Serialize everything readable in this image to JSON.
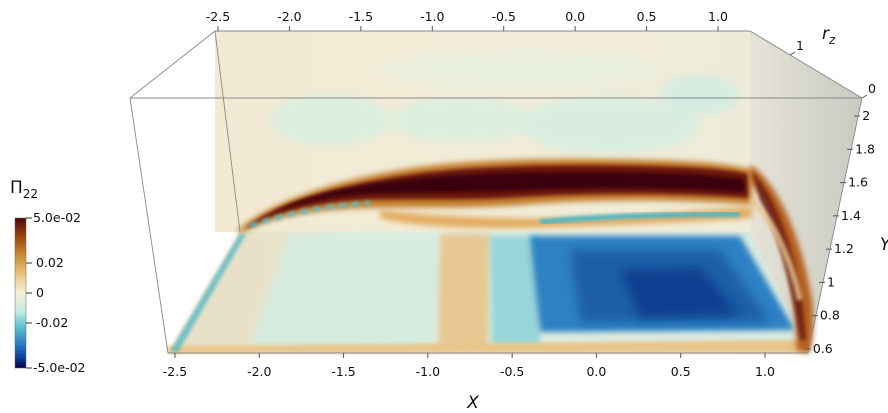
{
  "chart_data": {
    "type": "heatmap",
    "title": "",
    "colorbar": {
      "symbol": "Π",
      "subscript": "22",
      "max_label": "5.0e-02",
      "min_label": "-5.0e-02",
      "ticks": [
        "0.02",
        "0",
        "-0.02"
      ],
      "range": [
        -0.05,
        0.05
      ],
      "colors": [
        "#04004a",
        "#0b3f93",
        "#2b7dc1",
        "#60c2cf",
        "#c8ebe4",
        "#f6f1d5",
        "#ecc784",
        "#cb8b33",
        "#99420c",
        "#4a0609"
      ]
    },
    "x_axis": {
      "title": "X",
      "ticks": [
        "-2.5",
        "-2.0",
        "-1.5",
        "-1.0",
        "-0.5",
        "0.0",
        "0.5",
        "1.0"
      ],
      "range": [
        -2.5,
        1.2
      ]
    },
    "top_axis": {
      "ticks": [
        "-2.5",
        "-2.0",
        "-1.5",
        "-1.0",
        "-0.5",
        "0.0",
        "0.5",
        "1.0"
      ]
    },
    "y_axis": {
      "title": "Y",
      "ticks": [
        "2",
        "1.8",
        "1.6",
        "1.4",
        "1.2",
        "1",
        "0.8",
        "0.6"
      ],
      "range": [
        0.55,
        2.05
      ]
    },
    "z_axis": {
      "title_symbol": "r",
      "title_subscript": "z",
      "ticks": [
        "1",
        "0"
      ],
      "range": [
        0,
        1
      ]
    },
    "planes": [
      "vertical X-Y plane (back)",
      "floor X-rz plane",
      "side rz-Y plane (right)"
    ],
    "features": {
      "shear_layer_peak": 0.05,
      "floor_negative_region": -0.05,
      "floor_positive_band": 0.02
    }
  }
}
